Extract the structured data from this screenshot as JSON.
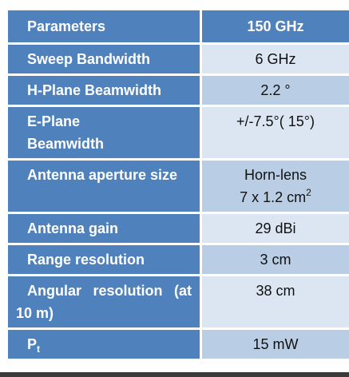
{
  "table": {
    "header": {
      "param": "Parameters",
      "value": "150 GHz"
    },
    "rows": [
      {
        "label": "Sweep Bandwidth",
        "value": "6 GHz"
      },
      {
        "label": "H-Plane Beamwidth",
        "value": "2.2 °"
      },
      {
        "label_line1": "E-Plane",
        "label_line2": "Beamwidth",
        "value": "+/-7.5°( 15°)"
      },
      {
        "label": "Antenna aperture size",
        "value_line1": "Horn-lens",
        "value_line2_base": "7 x 1.2 cm",
        "value_line2_sup": "2"
      },
      {
        "label": "Antenna gain",
        "value": "29 dBi"
      },
      {
        "label": "Range resolution",
        "value": "3 cm"
      },
      {
        "label": "Angular resolution (at 10 m)",
        "value": "38 cm"
      },
      {
        "label_base": "P",
        "label_sub": "t",
        "value": "15 mW"
      }
    ]
  },
  "colors": {
    "header_blue": "#4f81bd",
    "row_light": "#dce6f2",
    "row_dark": "#b9cde5"
  }
}
